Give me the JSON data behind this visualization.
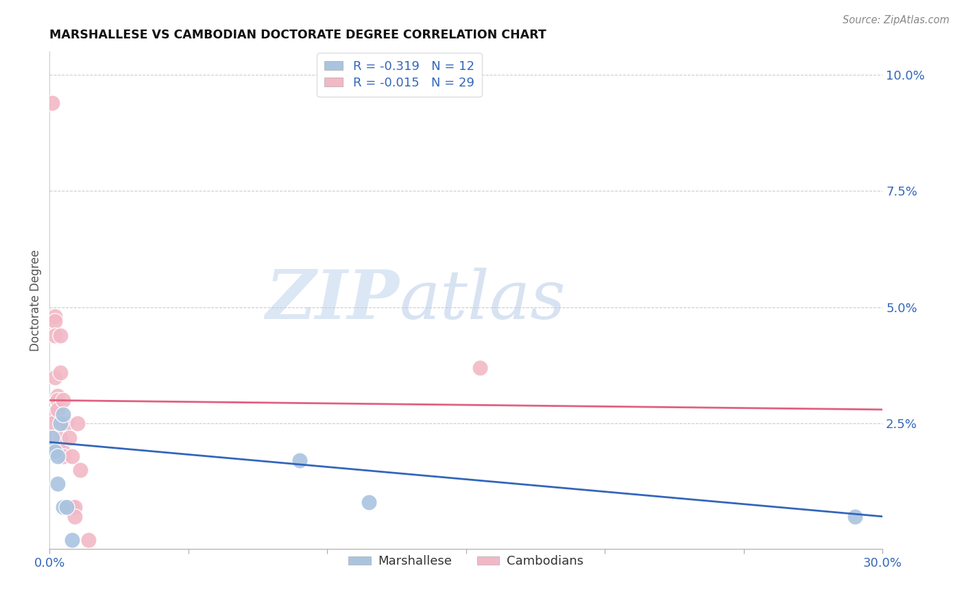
{
  "title": "MARSHALLESE VS CAMBODIAN DOCTORATE DEGREE CORRELATION CHART",
  "source": "Source: ZipAtlas.com",
  "ylabel": "Doctorate Degree",
  "right_yticks": [
    "10.0%",
    "7.5%",
    "5.0%",
    "2.5%"
  ],
  "right_ytick_vals": [
    0.1,
    0.075,
    0.05,
    0.025
  ],
  "watermark_zip": "ZIP",
  "watermark_atlas": "atlas",
  "legend_blue_r": "-0.319",
  "legend_blue_n": "12",
  "legend_pink_r": "-0.015",
  "legend_pink_n": "29",
  "blue_color": "#aac4e0",
  "pink_color": "#f2b8c6",
  "blue_line_color": "#3366bb",
  "pink_line_color": "#e06080",
  "blue_scatter_x": [
    0.001,
    0.002,
    0.003,
    0.003,
    0.004,
    0.005,
    0.005,
    0.006,
    0.008,
    0.09,
    0.115,
    0.29
  ],
  "blue_scatter_y": [
    0.022,
    0.019,
    0.018,
    0.012,
    0.025,
    0.027,
    0.007,
    0.007,
    0.0,
    0.017,
    0.008,
    0.005
  ],
  "pink_scatter_x": [
    0.001,
    0.001,
    0.001,
    0.001,
    0.002,
    0.002,
    0.002,
    0.002,
    0.003,
    0.003,
    0.003,
    0.003,
    0.004,
    0.004,
    0.004,
    0.005,
    0.005,
    0.005,
    0.005,
    0.006,
    0.007,
    0.008,
    0.008,
    0.009,
    0.009,
    0.01,
    0.011,
    0.014,
    0.155
  ],
  "pink_scatter_y": [
    0.094,
    0.027,
    0.025,
    0.022,
    0.048,
    0.047,
    0.044,
    0.035,
    0.031,
    0.03,
    0.028,
    0.02,
    0.044,
    0.036,
    0.022,
    0.03,
    0.025,
    0.019,
    0.018,
    0.025,
    0.022,
    0.018,
    0.007,
    0.007,
    0.005,
    0.025,
    0.015,
    0.0,
    0.037
  ],
  "xmin": 0.0,
  "xmax": 0.3,
  "ymin": -0.002,
  "ymax": 0.105,
  "blue_line_x0": 0.0,
  "blue_line_y0": 0.021,
  "blue_line_x1": 0.3,
  "blue_line_y1": 0.005,
  "pink_line_x0": 0.0,
  "pink_line_y0": 0.03,
  "pink_line_x1": 0.3,
  "pink_line_y1": 0.028
}
